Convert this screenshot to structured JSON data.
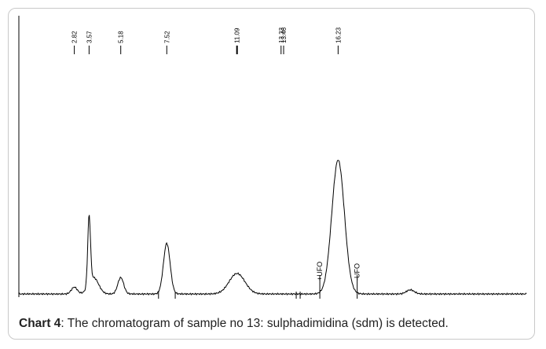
{
  "chart_data": {
    "type": "line",
    "title": "",
    "xlabel": "",
    "ylabel": "",
    "x_unit": "min",
    "xlim": [
      0,
      25.8
    ],
    "ylim": [
      0,
      100
    ],
    "retention_times": [
      "2.82",
      "3.57",
      "5.18",
      "7.52",
      "11.09",
      "13.33",
      "13.46",
      "16.23"
    ],
    "peaks": [
      {
        "rt": 2.82,
        "height": 5,
        "width": 0.15
      },
      {
        "rt": 3.57,
        "height": 50,
        "width": 0.07
      },
      {
        "rt": 3.8,
        "height": 12,
        "width": 0.25
      },
      {
        "rt": 5.18,
        "height": 12,
        "width": 0.15
      },
      {
        "rt": 7.52,
        "height": 37,
        "width": 0.17
      },
      {
        "rt": 11.09,
        "height": 15,
        "width": 0.4
      },
      {
        "rt": 16.23,
        "height": 98,
        "width": 0.32
      },
      {
        "rt": 19.9,
        "height": 3,
        "width": 0.2
      }
    ],
    "integration_marks": [
      {
        "label": "+UFO",
        "rt": 15.3
      },
      {
        "label": "-UFO",
        "rt": 17.2
      }
    ]
  },
  "caption": {
    "label": "Chart 4",
    "text": ": The chromatogram of sample no 13: sulphadimidina (sdm) is detected."
  }
}
